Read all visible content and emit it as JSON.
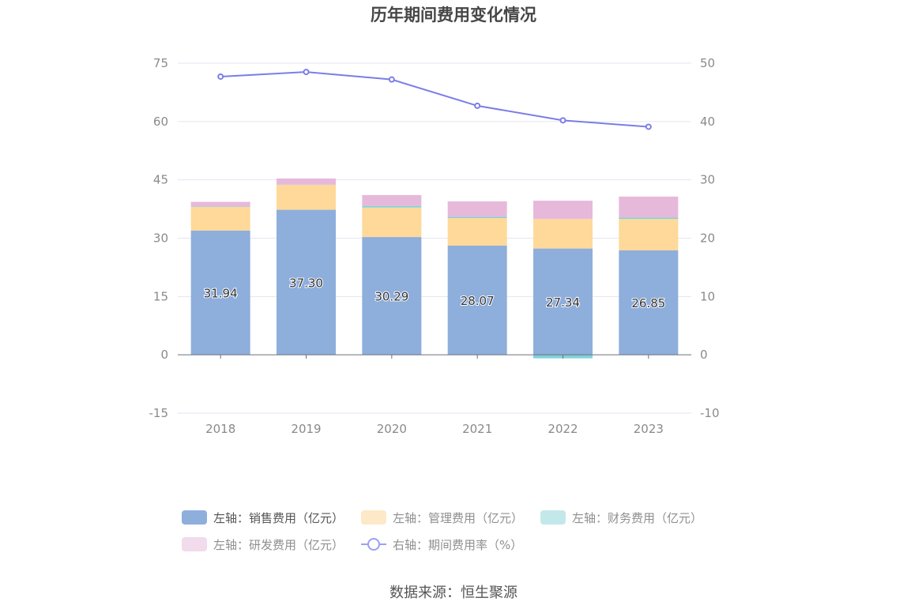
{
  "chart_data": {
    "type": "bar",
    "title": "历年期间费用变化情况",
    "categories": [
      "2018",
      "2019",
      "2020",
      "2021",
      "2022",
      "2023"
    ],
    "stacked": true,
    "left_axis": {
      "ticks": [
        75,
        60,
        45,
        30,
        15,
        0,
        -15
      ],
      "ylim": [
        -15,
        75
      ]
    },
    "right_axis": {
      "ticks": [
        50,
        40,
        30,
        20,
        10,
        0,
        -10
      ],
      "ylim": [
        -10,
        50
      ]
    },
    "series": [
      {
        "name": "左轴：销售费用（亿元）",
        "axis": "left",
        "type": "bar",
        "color": "#8eaedc",
        "values": [
          31.94,
          37.3,
          30.29,
          28.07,
          27.34,
          26.85
        ],
        "labels": [
          "31.94",
          "37.30",
          "30.29",
          "28.07",
          "27.34",
          "26.85"
        ]
      },
      {
        "name": "左轴：管理费用（亿元）",
        "axis": "left",
        "type": "bar",
        "color": "#fed999",
        "values": [
          6.1,
          6.4,
          7.6,
          7.1,
          7.6,
          8.1
        ]
      },
      {
        "name": "左轴：财务费用（亿元）",
        "axis": "left",
        "type": "bar",
        "color": "#7fd3d9",
        "values": [
          0.1,
          0.05,
          0.4,
          0.3,
          -0.9,
          0.35
        ]
      },
      {
        "name": "左轴：研发费用（亿元）",
        "axis": "left",
        "type": "bar",
        "color": "#e6b9db",
        "values": [
          1.2,
          1.6,
          2.8,
          4.0,
          4.7,
          5.4
        ]
      },
      {
        "name": "右轴：期间费用率（%）",
        "axis": "right",
        "type": "line",
        "color": "#7b7de8",
        "values": [
          47.7,
          48.5,
          47.2,
          42.7,
          40.2,
          39.1
        ]
      }
    ],
    "grid": true,
    "legend_position": "bottom"
  },
  "source_text": "数据来源：恒生聚源"
}
